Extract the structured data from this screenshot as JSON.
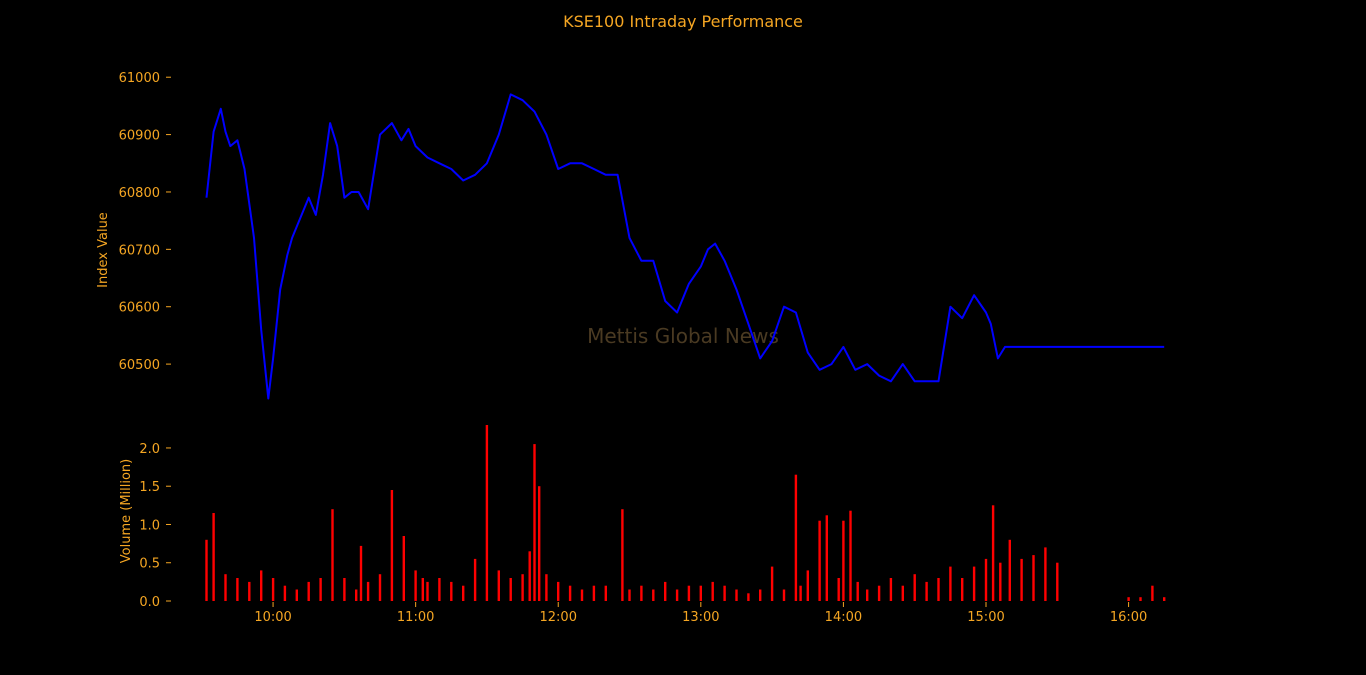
{
  "chart_data": {
    "type": "line",
    "title": "KSE100 Intraday Performance",
    "watermark": "Mettis Global News",
    "colors": {
      "background": "#000000",
      "text": "#f5a623",
      "index_line": "#0000ff",
      "volume_bars": "#ff0000"
    },
    "index_panel": {
      "ylabel": "Index Value",
      "ylim": [
        60420,
        61030
      ],
      "yticks": [
        "60500",
        "60600",
        "60700",
        "60800",
        "60900",
        "61000"
      ],
      "series": {
        "x": [
          "09:32",
          "09:35",
          "09:38",
          "09:40",
          "09:42",
          "09:45",
          "09:48",
          "09:52",
          "09:55",
          "09:58",
          "10:00",
          "10:03",
          "10:06",
          "10:08",
          "10:12",
          "10:15",
          "10:18",
          "10:21",
          "10:24",
          "10:27",
          "10:30",
          "10:33",
          "10:36",
          "10:40",
          "10:45",
          "10:50",
          "10:54",
          "10:57",
          "11:00",
          "11:05",
          "11:10",
          "11:15",
          "11:20",
          "11:25",
          "11:30",
          "11:35",
          "11:40",
          "11:45",
          "11:50",
          "11:55",
          "12:00",
          "12:05",
          "12:10",
          "12:15",
          "12:20",
          "12:25",
          "12:30",
          "12:35",
          "12:40",
          "12:45",
          "12:50",
          "12:55",
          "13:00",
          "13:03",
          "13:06",
          "13:10",
          "13:15",
          "13:20",
          "13:25",
          "13:30",
          "13:35",
          "13:40",
          "13:45",
          "13:50",
          "13:55",
          "14:00",
          "14:05",
          "14:10",
          "14:15",
          "14:20",
          "14:25",
          "14:30",
          "14:35",
          "14:40",
          "14:45",
          "14:50",
          "14:55",
          "15:00",
          "15:02",
          "15:05",
          "15:08",
          "15:12",
          "15:15",
          "15:20",
          "15:25",
          "15:30",
          "15:35",
          "16:00",
          "16:15"
        ],
        "values": [
          60790,
          60905,
          60945,
          60905,
          60880,
          60890,
          60840,
          60720,
          60560,
          60440,
          60510,
          60630,
          60690,
          60720,
          60760,
          60790,
          60760,
          60830,
          60920,
          60880,
          60790,
          60800,
          60800,
          60770,
          60900,
          60920,
          60890,
          60910,
          60880,
          60860,
          60850,
          60840,
          60820,
          60830,
          60850,
          60900,
          60970,
          60960,
          60940,
          60900,
          60840,
          60850,
          60850,
          60840,
          60830,
          60830,
          60720,
          60680,
          60680,
          60610,
          60590,
          60640,
          60670,
          60700,
          60710,
          60680,
          60630,
          60570,
          60510,
          60540,
          60600,
          60590,
          60520,
          60490,
          60500,
          60530,
          60490,
          60500,
          60480,
          60470,
          60500,
          60470,
          60470,
          60470,
          60600,
          60580,
          60620,
          60590,
          60570,
          60510,
          60530,
          60530,
          60530,
          60530,
          60530,
          60530,
          60530,
          60530,
          60530
        ]
      }
    },
    "volume_panel": {
      "ylabel": "Volume (Million)",
      "ylim": [
        0,
        2.3
      ],
      "yticks": [
        "0.0",
        "0.5",
        "1.0",
        "1.5",
        "2.0"
      ],
      "series": {
        "x": [
          "09:32",
          "09:35",
          "09:40",
          "09:45",
          "09:50",
          "09:55",
          "10:00",
          "10:05",
          "10:10",
          "10:15",
          "10:20",
          "10:25",
          "10:30",
          "10:35",
          "10:37",
          "10:40",
          "10:45",
          "10:50",
          "10:55",
          "11:00",
          "11:03",
          "11:05",
          "11:10",
          "11:15",
          "11:20",
          "11:25",
          "11:30",
          "11:35",
          "11:40",
          "11:45",
          "11:48",
          "11:50",
          "11:52",
          "11:55",
          "12:00",
          "12:05",
          "12:10",
          "12:15",
          "12:20",
          "12:27",
          "12:30",
          "12:35",
          "12:40",
          "12:45",
          "12:50",
          "12:55",
          "13:00",
          "13:05",
          "13:10",
          "13:15",
          "13:20",
          "13:25",
          "13:30",
          "13:35",
          "13:40",
          "13:42",
          "13:45",
          "13:50",
          "13:53",
          "13:58",
          "14:00",
          "14:03",
          "14:06",
          "14:10",
          "14:15",
          "14:20",
          "14:25",
          "14:30",
          "14:35",
          "14:40",
          "14:45",
          "14:50",
          "14:55",
          "15:00",
          "15:03",
          "15:06",
          "15:10",
          "15:15",
          "15:20",
          "15:25",
          "15:30",
          "16:00",
          "16:05",
          "16:10",
          "16:15"
        ],
        "values": [
          0.8,
          1.15,
          0.35,
          0.3,
          0.25,
          0.4,
          0.3,
          0.2,
          0.15,
          0.25,
          0.3,
          1.2,
          0.3,
          0.15,
          0.72,
          0.25,
          0.35,
          1.45,
          0.85,
          0.4,
          0.3,
          0.25,
          0.3,
          0.25,
          0.2,
          0.55,
          2.3,
          0.4,
          0.3,
          0.35,
          0.65,
          2.05,
          1.5,
          0.35,
          0.25,
          0.2,
          0.15,
          0.2,
          0.2,
          1.2,
          0.15,
          0.2,
          0.15,
          0.25,
          0.15,
          0.2,
          0.2,
          0.25,
          0.2,
          0.15,
          0.1,
          0.15,
          0.45,
          0.15,
          1.65,
          0.2,
          0.4,
          1.05,
          1.12,
          0.3,
          1.05,
          1.18,
          0.25,
          0.15,
          0.2,
          0.3,
          0.2,
          0.35,
          0.25,
          0.3,
          0.45,
          0.3,
          0.45,
          0.55,
          1.25,
          0.5,
          0.8,
          0.55,
          0.6,
          0.7,
          0.5,
          0.05,
          0.05,
          0.2,
          0.05
        ]
      }
    },
    "xaxis": {
      "range": [
        "09:20",
        "16:25"
      ],
      "ticks": [
        "10:00",
        "11:00",
        "12:00",
        "13:00",
        "14:00",
        "15:00",
        "16:00"
      ]
    },
    "grid": false,
    "legend": "none"
  }
}
